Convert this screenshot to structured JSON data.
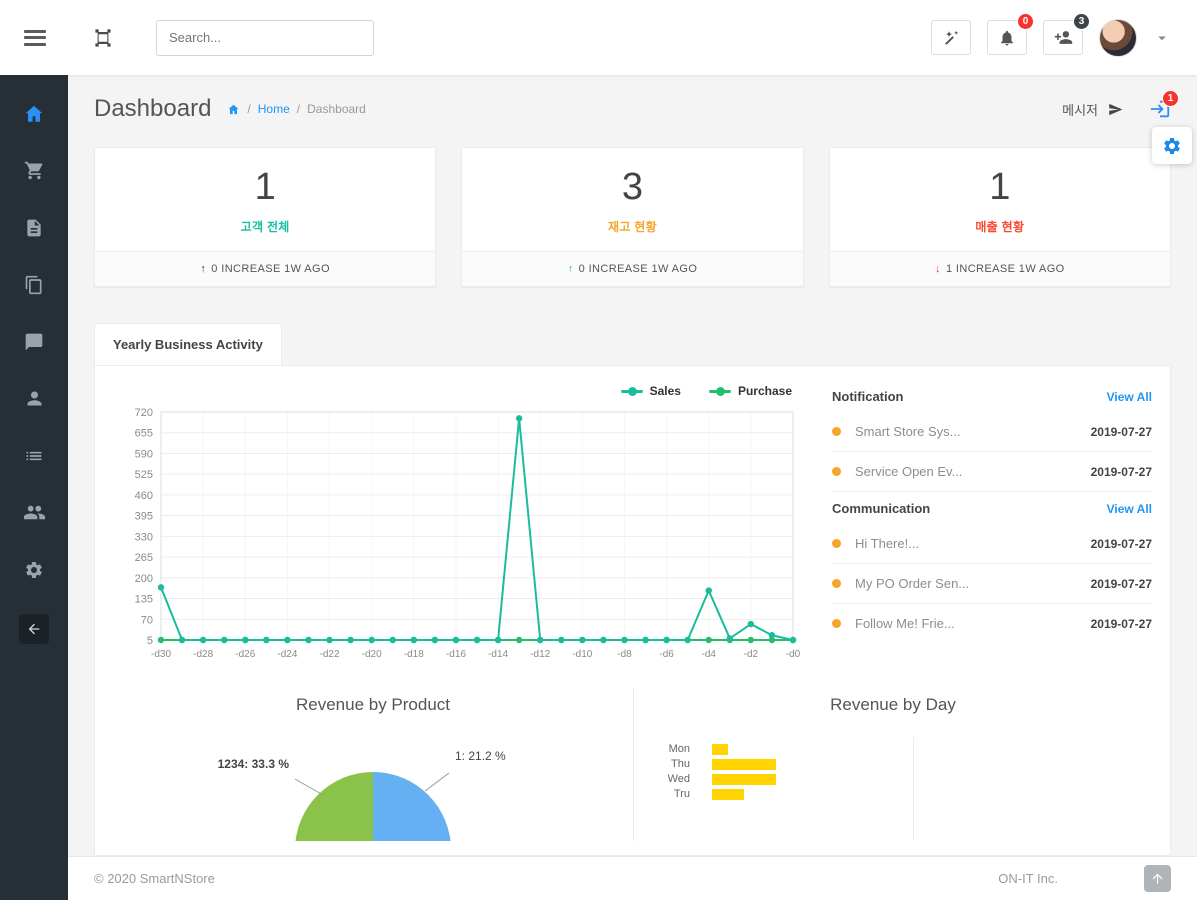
{
  "colors": {
    "link": "#2196f3",
    "accent_blue": "#2e8ef7"
  },
  "navbar": {
    "search_placeholder": "Search...",
    "bell_badge": "0",
    "user_badge": "3",
    "icons": [
      "menu-icon",
      "logo-icon",
      "magic-wand-icon",
      "bell-icon",
      "user-plus-icon",
      "avatar",
      "caret-down-icon"
    ]
  },
  "sidebar": {
    "icons": [
      "home",
      "shopping-cart",
      "invoice",
      "documents",
      "chat",
      "customer",
      "schedule",
      "users",
      "settings",
      "collapse"
    ]
  },
  "header": {
    "title": "Dashboard",
    "breadcrumb_home": "Home",
    "breadcrumb_current": "Dashboard",
    "messenger_label": "메시저",
    "login_badge": "1"
  },
  "stats": [
    {
      "value": "1",
      "label": "고객 전체",
      "label_color": "#17c1a3",
      "trend_icon": "↑",
      "trend_color": "#3a3f44",
      "footer": "0 INCREASE 1W AGO"
    },
    {
      "value": "3",
      "label": "재고 현황",
      "label_color": "#f7a52a",
      "trend_icon": "↑",
      "trend_color": "#3fbf5a",
      "footer": "0 INCREASE 1W AGO"
    },
    {
      "value": "1",
      "label": "매출 현황",
      "label_color": "#fb4a2e",
      "trend_icon": "↓",
      "trend_color": "#f23c2e",
      "footer": "1 INCREASE 1W AGO"
    }
  ],
  "activity": {
    "tab_label": "Yearly Business Activity"
  },
  "chart_data": [
    {
      "type": "line",
      "title": "Yearly Business Activity",
      "x_ticks": [
        "-d30",
        "-d28",
        "-d26",
        "-d24",
        "-d22",
        "-d20",
        "-d18",
        "-d16",
        "-d14",
        "-d12",
        "-d10",
        "-d8",
        "-d6",
        "-d4",
        "-d2",
        "-d0"
      ],
      "y_ticks": [
        5,
        70,
        135,
        200,
        265,
        330,
        395,
        460,
        525,
        590,
        655,
        720
      ],
      "ylim": [
        5,
        720
      ],
      "grid": true,
      "legend_position": "top-right",
      "series": [
        {
          "name": "Sales",
          "color": "#1abc9c",
          "values": [
            170,
            5,
            5,
            5,
            5,
            5,
            5,
            5,
            5,
            5,
            5,
            5,
            5,
            5,
            5,
            5,
            5,
            700,
            5,
            5,
            5,
            5,
            5,
            5,
            5,
            5,
            160,
            10,
            55,
            20,
            5
          ]
        },
        {
          "name": "Purchase",
          "color": "#23bf6e",
          "values": [
            5,
            5,
            5,
            5,
            5,
            5,
            5,
            5,
            5,
            5,
            5,
            5,
            5,
            5,
            5,
            5,
            5,
            5,
            5,
            5,
            5,
            5,
            5,
            5,
            5,
            5,
            5,
            5,
            5,
            5,
            5
          ]
        }
      ]
    },
    {
      "type": "pie",
      "title": "Revenue by Product",
      "slices": [
        {
          "label": "1234",
          "percent": 33.3,
          "display": "1234: 33.3 %",
          "color": "#8bc34a"
        },
        {
          "label": "1",
          "percent": 21.2,
          "display": "1: 21.2 %",
          "color": "#64b0f2"
        }
      ]
    },
    {
      "type": "bar",
      "title": "Revenue by Day",
      "orientation": "horizontal",
      "categories": [
        "Mon",
        "Thu",
        "Wed",
        "Tru"
      ],
      "values": [
        1,
        4,
        4,
        2
      ],
      "bar_color": "#ffd400"
    }
  ],
  "panel": {
    "dot_color": "#f7a52a",
    "sections": [
      {
        "title": "Notification",
        "view_all": "View All",
        "items": [
          {
            "text": "Smart Store Sys...",
            "date": "2019-07-27"
          },
          {
            "text": "Service Open Ev...",
            "date": "2019-07-27"
          }
        ]
      },
      {
        "title": "Communication",
        "view_all": "View All",
        "items": [
          {
            "text": "Hi There!...",
            "date": "2019-07-27"
          },
          {
            "text": "My PO Order Sen...",
            "date": "2019-07-27"
          },
          {
            "text": "Follow Me! Frie...",
            "date": "2019-07-27"
          }
        ]
      }
    ]
  },
  "bottom": {
    "product_title": "Revenue by Product",
    "day_title": "Revenue by Day"
  },
  "footer": {
    "copyright": "© 2020 SmartNStore",
    "company": "ON-IT Inc."
  }
}
